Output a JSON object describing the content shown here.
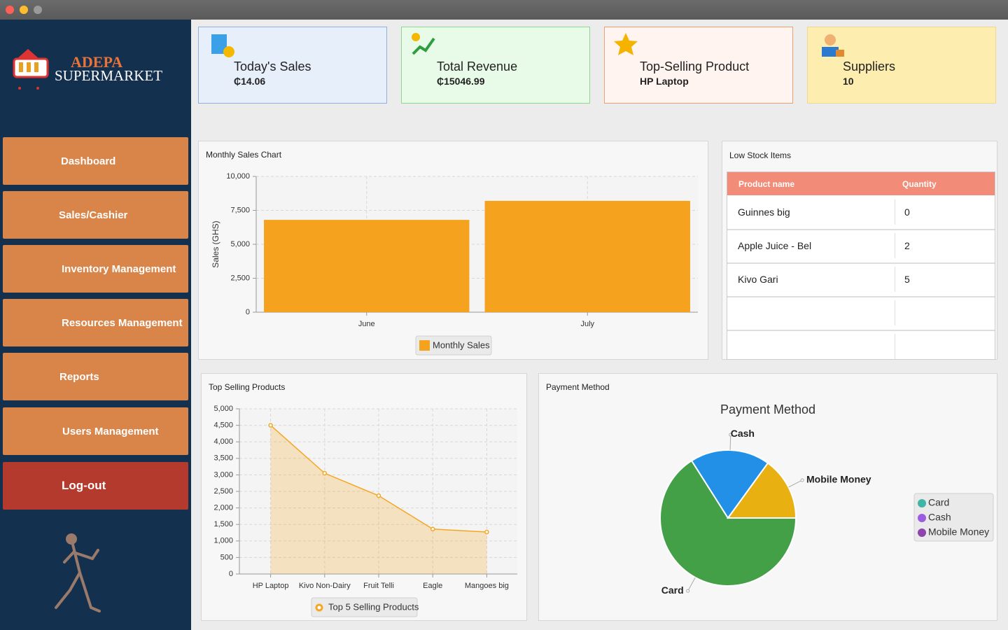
{
  "brand": {
    "line1": "ADEPA",
    "line2": "SUPERMARKET"
  },
  "nav": [
    "Dashboard",
    "Sales/Cashier",
    "Inventory Management",
    "Resources Management",
    "Reports",
    "Users Management",
    "Log-out"
  ],
  "cards": [
    {
      "title": "Today's Sales",
      "value": "₵14.06"
    },
    {
      "title": "Total Revenue",
      "value": "₵15046.99"
    },
    {
      "title": "Top-Selling Product",
      "value": "HP Laptop"
    },
    {
      "title": "Suppliers",
      "value": "10"
    }
  ],
  "low_stock": {
    "title": "Low Stock Items",
    "columns": [
      "Product name",
      "Quantity"
    ],
    "rows": [
      [
        "Guinnes big",
        0
      ],
      [
        "Apple Juice - Bel",
        2
      ],
      [
        "Kivo Gari",
        5
      ]
    ]
  },
  "chart_data": [
    {
      "type": "bar",
      "panel_title": "Monthly Sales Chart",
      "ylabel": "Sales (GHS)",
      "categories": [
        "June",
        "July"
      ],
      "series": [
        {
          "name": "Monthly Sales",
          "color": "#f5a31f",
          "values": [
            6800,
            8200
          ]
        }
      ],
      "ylim": [
        0,
        10000
      ],
      "yticks": [
        0,
        {
          "value": 2500,
          "label": "2,500"
        },
        {
          "value": 5000,
          "label": "5,000"
        },
        {
          "value": 7500,
          "label": "7,500"
        },
        {
          "value": 10000,
          "label": "10,000"
        }
      ],
      "grid": true
    },
    {
      "type": "area",
      "panel_title": "Top Selling Products",
      "categories": [
        "HP Laptop",
        "Kivo Non-Dairy",
        "Fruit Telli",
        "Eagle",
        "Mangoes big"
      ],
      "series": [
        {
          "name": "Top 5 Selling Products",
          "color": "#f5a623",
          "values": [
            4500,
            3050,
            2370,
            1360,
            1270
          ]
        }
      ],
      "ylim": [
        0,
        5000
      ],
      "yticks": [
        0,
        500,
        {
          "value": 1000,
          "label": "1,000"
        },
        {
          "value": 1500,
          "label": "1,500"
        },
        {
          "value": 2000,
          "label": "2,000"
        },
        {
          "value": 2500,
          "label": "2,500"
        },
        {
          "value": 3000,
          "label": "3,000"
        },
        {
          "value": 3500,
          "label": "3,500"
        },
        {
          "value": 4000,
          "label": "4,000"
        },
        {
          "value": 4500,
          "label": "4,500"
        },
        {
          "value": 5000,
          "label": "5,000"
        }
      ],
      "grid": true
    },
    {
      "type": "pie",
      "panel_title": "Payment Method",
      "title": "Payment Method",
      "categories": [
        "Card",
        "Cash",
        "Mobile Money"
      ],
      "values": [
        66,
        19,
        15
      ],
      "colors": [
        "#43a047",
        "#2390e8",
        "#e8b010"
      ],
      "legend_colors": [
        "#3fb5a8",
        "#9c5ce0",
        "#8e44ad"
      ]
    }
  ]
}
